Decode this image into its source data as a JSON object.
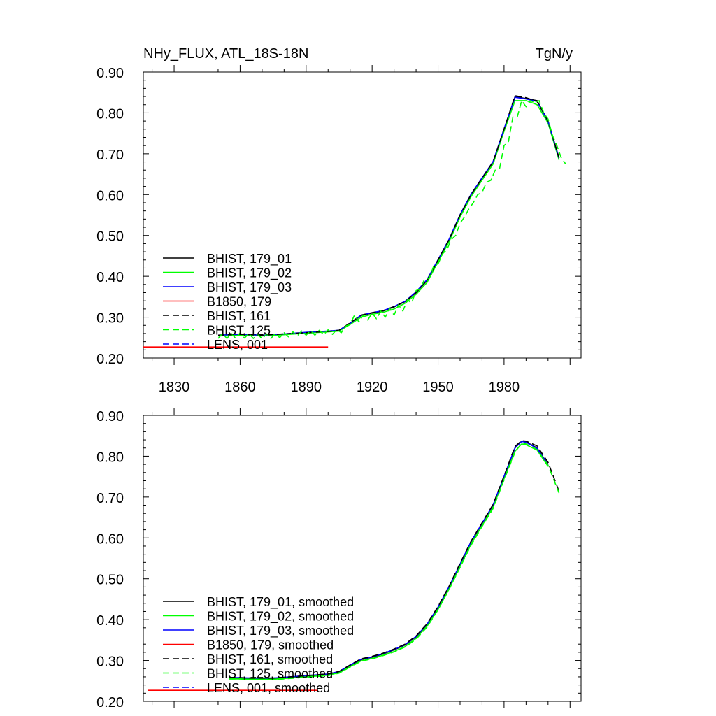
{
  "chart_data": [
    {
      "type": "line",
      "title": "NHy_FLUX, ATL_18S-18N",
      "units": "TgN/y",
      "xlabel": "",
      "ylabel": "",
      "xlim": [
        1816,
        2015
      ],
      "ylim": [
        0.2,
        0.9
      ],
      "x_ticks": [
        "1830",
        "1860",
        "1890",
        "1920",
        "1950",
        "1980"
      ],
      "y_ticks": [
        "0.20",
        "0.30",
        "0.40",
        "0.50",
        "0.60",
        "0.70",
        "0.80",
        "0.90"
      ],
      "legend_position": "lower-left",
      "series": [
        {
          "name": "BHIST, 179_01",
          "color": "#000000",
          "dash": "solid",
          "x": [
            1850,
            1860,
            1870,
            1880,
            1890,
            1900,
            1905,
            1910,
            1915,
            1920,
            1925,
            1930,
            1935,
            1940,
            1945,
            1950,
            1955,
            1960,
            1965,
            1970,
            1975,
            1980,
            1985,
            1990,
            1995,
            2000,
            2005
          ],
          "y": [
            0.255,
            0.257,
            0.255,
            0.258,
            0.262,
            0.265,
            0.268,
            0.285,
            0.304,
            0.31,
            0.315,
            0.325,
            0.338,
            0.36,
            0.39,
            0.44,
            0.49,
            0.55,
            0.6,
            0.64,
            0.68,
            0.76,
            0.84,
            0.835,
            0.83,
            0.78,
            0.69
          ]
        },
        {
          "name": "BHIST, 179_02",
          "color": "#00ff00",
          "dash": "solid",
          "x": [
            1850,
            1860,
            1870,
            1880,
            1890,
            1900,
            1905,
            1910,
            1915,
            1920,
            1925,
            1930,
            1935,
            1940,
            1945,
            1950,
            1955,
            1960,
            1965,
            1970,
            1975,
            1980,
            1985,
            1990,
            1995,
            2000,
            2005
          ],
          "y": [
            0.254,
            0.256,
            0.254,
            0.257,
            0.261,
            0.264,
            0.266,
            0.282,
            0.3,
            0.307,
            0.312,
            0.32,
            0.334,
            0.356,
            0.385,
            0.435,
            0.485,
            0.545,
            0.595,
            0.635,
            0.675,
            0.755,
            0.83,
            0.83,
            0.82,
            0.775,
            0.685
          ]
        },
        {
          "name": "BHIST, 179_03",
          "color": "#0000ff",
          "dash": "solid",
          "x": [
            1850,
            1860,
            1870,
            1880,
            1890,
            1900,
            1905,
            1910,
            1915,
            1920,
            1925,
            1930,
            1935,
            1940,
            1945,
            1950,
            1955,
            1960,
            1965,
            1970,
            1975,
            1980,
            1985,
            1990,
            1995,
            2000,
            2005
          ],
          "y": [
            0.256,
            0.258,
            0.256,
            0.259,
            0.263,
            0.266,
            0.268,
            0.285,
            0.305,
            0.311,
            0.316,
            0.326,
            0.339,
            0.362,
            0.392,
            0.441,
            0.491,
            0.551,
            0.601,
            0.641,
            0.681,
            0.761,
            0.838,
            0.834,
            0.828,
            0.779,
            0.689
          ]
        },
        {
          "name": "B1850, 179",
          "color": "#ff0000",
          "dash": "solid",
          "x": [
            1816,
            1900
          ],
          "y": [
            0.227,
            0.227
          ]
        },
        {
          "name": "BHIST, 161",
          "color": "#000000",
          "dash": "dashed",
          "x": [
            1850,
            1860,
            1870,
            1880,
            1890,
            1900,
            1905,
            1910,
            1915,
            1920,
            1925,
            1930,
            1935,
            1940,
            1945,
            1950,
            1955,
            1960,
            1965,
            1970,
            1975,
            1980,
            1985,
            1990,
            1995,
            2000,
            2005
          ],
          "y": [
            0.256,
            0.258,
            0.256,
            0.259,
            0.262,
            0.265,
            0.268,
            0.286,
            0.305,
            0.311,
            0.316,
            0.326,
            0.338,
            0.36,
            0.39,
            0.44,
            0.49,
            0.55,
            0.6,
            0.64,
            0.68,
            0.76,
            0.842,
            0.837,
            0.828,
            0.78,
            0.69
          ]
        },
        {
          "name": "BHIST, 125",
          "color": "#00ff00",
          "dash": "dashed",
          "x": [
            1850,
            1852,
            1854,
            1856,
            1858,
            1860,
            1862,
            1864,
            1866,
            1868,
            1870,
            1872,
            1874,
            1876,
            1878,
            1880,
            1882,
            1884,
            1886,
            1888,
            1890,
            1892,
            1894,
            1896,
            1898,
            1900,
            1902,
            1904,
            1906,
            1908,
            1910,
            1912,
            1914,
            1916,
            1918,
            1920,
            1922,
            1924,
            1926,
            1928,
            1930,
            1932,
            1934,
            1936,
            1938,
            1940,
            1942,
            1944,
            1946,
            1948,
            1950,
            1952,
            1954,
            1956,
            1958,
            1960,
            1962,
            1964,
            1966,
            1968,
            1970,
            1972,
            1974,
            1976,
            1978,
            1980,
            1982,
            1984,
            1986,
            1988,
            1990,
            1992,
            1994,
            1996,
            1998,
            2000,
            2002,
            2004,
            2006,
            2008
          ],
          "y": [
            0.248,
            0.26,
            0.248,
            0.26,
            0.248,
            0.262,
            0.249,
            0.26,
            0.248,
            0.258,
            0.247,
            0.259,
            0.248,
            0.26,
            0.25,
            0.262,
            0.252,
            0.264,
            0.254,
            0.266,
            0.256,
            0.267,
            0.256,
            0.268,
            0.257,
            0.269,
            0.258,
            0.27,
            0.262,
            0.278,
            0.282,
            0.305,
            0.288,
            0.305,
            0.293,
            0.31,
            0.296,
            0.315,
            0.3,
            0.322,
            0.305,
            0.33,
            0.315,
            0.342,
            0.335,
            0.365,
            0.37,
            0.395,
            0.395,
            0.425,
            0.43,
            0.455,
            0.465,
            0.49,
            0.5,
            0.53,
            0.545,
            0.565,
            0.58,
            0.6,
            0.605,
            0.63,
            0.635,
            0.66,
            0.665,
            0.72,
            0.73,
            0.79,
            0.79,
            0.83,
            0.815,
            0.83,
            0.825,
            0.83,
            0.8,
            0.785,
            0.745,
            0.72,
            0.69,
            0.675
          ]
        },
        {
          "name": "LENS, 001",
          "color": "#0000ff",
          "dash": "dashed",
          "x": [],
          "y": []
        }
      ]
    },
    {
      "type": "line",
      "title": "",
      "units": "",
      "xlabel": "",
      "ylabel": "",
      "xlim": [
        1816,
        2015
      ],
      "ylim": [
        0.2,
        0.9
      ],
      "x_ticks": [],
      "y_ticks": [
        "0.20",
        "0.30",
        "0.40",
        "0.50",
        "0.60",
        "0.70",
        "0.80",
        "0.90"
      ],
      "legend_position": "lower-left",
      "series": [
        {
          "name": "BHIST, 179_01, smoothed",
          "color": "#000000",
          "dash": "solid",
          "x": [
            1855,
            1860,
            1865,
            1870,
            1875,
            1880,
            1885,
            1890,
            1895,
            1900,
            1905,
            1910,
            1915,
            1920,
            1925,
            1930,
            1935,
            1940,
            1945,
            1950,
            1955,
            1960,
            1965,
            1970,
            1975,
            1980,
            1985,
            1988,
            1990,
            1995,
            2000
          ],
          "y": [
            0.257,
            0.257,
            0.256,
            0.256,
            0.256,
            0.258,
            0.26,
            0.262,
            0.264,
            0.266,
            0.272,
            0.288,
            0.302,
            0.308,
            0.316,
            0.326,
            0.338,
            0.358,
            0.388,
            0.43,
            0.48,
            0.535,
            0.59,
            0.635,
            0.68,
            0.75,
            0.82,
            0.837,
            0.835,
            0.82,
            0.78
          ]
        },
        {
          "name": "BHIST, 179_02, smoothed",
          "color": "#00ff00",
          "dash": "solid",
          "x": [
            1855,
            1860,
            1865,
            1870,
            1875,
            1880,
            1885,
            1890,
            1895,
            1900,
            1905,
            1910,
            1915,
            1920,
            1925,
            1930,
            1935,
            1940,
            1945,
            1950,
            1955,
            1960,
            1965,
            1970,
            1975,
            1980,
            1985,
            1988,
            1990,
            1995,
            2000
          ],
          "y": [
            0.255,
            0.255,
            0.254,
            0.254,
            0.254,
            0.256,
            0.258,
            0.26,
            0.262,
            0.264,
            0.27,
            0.285,
            0.299,
            0.305,
            0.313,
            0.322,
            0.334,
            0.354,
            0.384,
            0.425,
            0.475,
            0.53,
            0.585,
            0.63,
            0.675,
            0.745,
            0.812,
            0.83,
            0.828,
            0.815,
            0.775
          ]
        },
        {
          "name": "BHIST, 179_03, smoothed",
          "color": "#0000ff",
          "dash": "solid",
          "x": [
            1855,
            1860,
            1865,
            1870,
            1875,
            1880,
            1885,
            1890,
            1895,
            1900,
            1905,
            1910,
            1915,
            1920,
            1925,
            1930,
            1935,
            1940,
            1945,
            1950,
            1955,
            1960,
            1965,
            1970,
            1975,
            1980,
            1985,
            1988,
            1990,
            1995,
            2000
          ],
          "y": [
            0.258,
            0.258,
            0.257,
            0.257,
            0.257,
            0.259,
            0.261,
            0.263,
            0.265,
            0.267,
            0.273,
            0.289,
            0.303,
            0.309,
            0.317,
            0.327,
            0.339,
            0.359,
            0.389,
            0.431,
            0.481,
            0.536,
            0.591,
            0.636,
            0.681,
            0.751,
            0.821,
            0.836,
            0.834,
            0.819,
            0.779
          ]
        },
        {
          "name": "B1850, 179, smoothed",
          "color": "#ff0000",
          "dash": "solid",
          "x": [
            1818,
            1895
          ],
          "y": [
            0.227,
            0.227
          ]
        },
        {
          "name": "BHIST, 161, smoothed",
          "color": "#000000",
          "dash": "dashed",
          "x": [
            1855,
            1860,
            1865,
            1870,
            1875,
            1880,
            1885,
            1890,
            1895,
            1900,
            1905,
            1910,
            1915,
            1920,
            1925,
            1930,
            1935,
            1940,
            1945,
            1950,
            1955,
            1960,
            1965,
            1970,
            1975,
            1980,
            1985,
            1988,
            1990,
            1995,
            2000,
            2005
          ],
          "y": [
            0.258,
            0.258,
            0.257,
            0.257,
            0.257,
            0.259,
            0.261,
            0.263,
            0.265,
            0.267,
            0.273,
            0.289,
            0.304,
            0.31,
            0.318,
            0.328,
            0.34,
            0.36,
            0.39,
            0.432,
            0.482,
            0.538,
            0.592,
            0.637,
            0.682,
            0.752,
            0.824,
            0.838,
            0.837,
            0.825,
            0.785,
            0.714
          ]
        },
        {
          "name": "BHIST, 125, smoothed",
          "color": "#00ff00",
          "dash": "dashed",
          "x": [
            1855,
            1860,
            1865,
            1870,
            1875,
            1880,
            1885,
            1890,
            1895,
            1900,
            1905,
            1910,
            1915,
            1920,
            1925,
            1930,
            1935,
            1940,
            1945,
            1950,
            1955,
            1960,
            1965,
            1970,
            1975,
            1980,
            1985,
            1988,
            1990,
            1995,
            2000,
            2005
          ],
          "y": [
            0.255,
            0.255,
            0.253,
            0.253,
            0.253,
            0.255,
            0.257,
            0.259,
            0.261,
            0.263,
            0.269,
            0.284,
            0.298,
            0.304,
            0.312,
            0.321,
            0.333,
            0.352,
            0.382,
            0.424,
            0.474,
            0.528,
            0.582,
            0.628,
            0.672,
            0.742,
            0.81,
            0.832,
            0.83,
            0.816,
            0.778,
            0.71
          ]
        },
        {
          "name": "LENS, 001, smoothed",
          "color": "#0000ff",
          "dash": "dashed",
          "x": [],
          "y": []
        }
      ]
    }
  ]
}
